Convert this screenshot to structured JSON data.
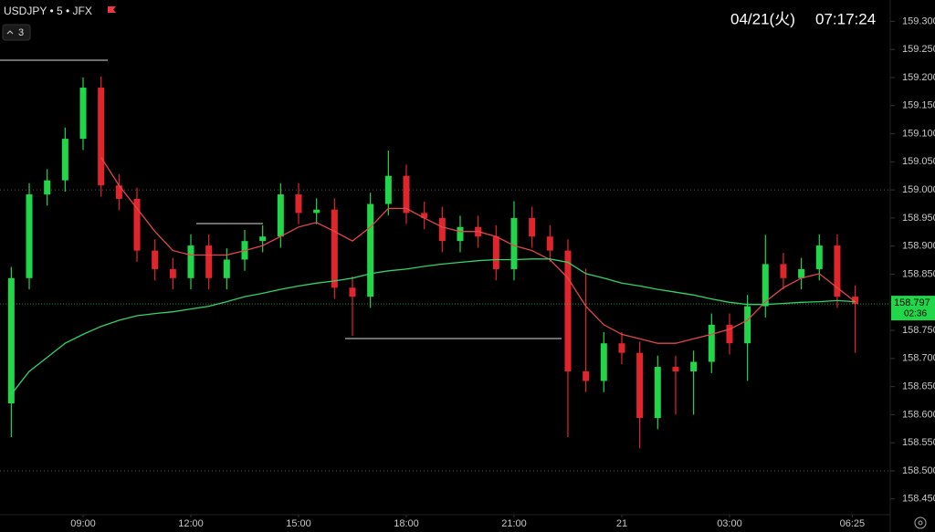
{
  "chart_data": {
    "type": "candlestick",
    "symbol": "USDJPY • 5 • JFX",
    "indicator_count": "3",
    "date": "04/21(火)",
    "time": "07:17:24",
    "last_price": 158.797,
    "countdown": "02:36",
    "up_color": "#22d64a",
    "down_color": "#e0262c",
    "x": [
      7.0,
      7.5,
      8.0,
      8.5,
      9.0,
      9.5,
      10.0,
      10.5,
      11.0,
      11.5,
      12.0,
      12.5,
      13.0,
      13.5,
      14.0,
      14.5,
      15.0,
      15.5,
      16.0,
      16.5,
      17.0,
      17.5,
      18.0,
      18.5,
      19.0,
      19.5,
      20.0,
      20.5,
      21.0,
      21.5,
      22.0,
      22.5,
      23.0,
      23.5,
      24.0,
      24.5,
      25.0,
      25.5,
      26.0,
      26.5,
      27.0,
      27.5,
      28.0,
      28.5,
      29.0,
      29.5,
      30.0,
      30.5
    ],
    "open": [
      158.62,
      158.843,
      158.992,
      159.017,
      159.091,
      159.182,
      159.008,
      158.984,
      158.892,
      158.859,
      158.843,
      158.901,
      158.843,
      158.876,
      158.909,
      158.917,
      158.992,
      158.959,
      158.965,
      158.826,
      158.81,
      158.975,
      159.025,
      158.959,
      158.95,
      158.909,
      158.934,
      158.917,
      158.859,
      158.95,
      158.917,
      158.892,
      158.677,
      158.66,
      158.727,
      158.71,
      158.594,
      158.685,
      158.677,
      158.694,
      158.76,
      158.727,
      158.793,
      158.868,
      158.843,
      158.859,
      158.901,
      158.81
    ],
    "high": [
      158.863,
      159.012,
      159.037,
      159.111,
      159.2,
      159.202,
      159.028,
      159.004,
      158.912,
      158.879,
      158.921,
      158.921,
      158.896,
      158.929,
      158.937,
      159.012,
      159.012,
      158.985,
      158.985,
      158.846,
      158.995,
      159.07,
      159.045,
      158.979,
      158.97,
      158.954,
      158.954,
      158.937,
      158.98,
      158.97,
      158.937,
      158.912,
      158.86,
      158.747,
      158.747,
      158.73,
      158.705,
      158.705,
      158.714,
      158.78,
      158.78,
      158.813,
      158.92,
      158.888,
      158.879,
      158.921,
      158.921,
      158.83
    ],
    "low": [
      158.56,
      158.823,
      158.972,
      158.997,
      159.071,
      158.988,
      158.964,
      158.872,
      158.839,
      158.823,
      158.823,
      158.823,
      158.823,
      158.856,
      158.889,
      158.897,
      158.939,
      158.939,
      158.806,
      158.74,
      158.79,
      158.955,
      158.939,
      158.93,
      158.889,
      158.889,
      158.897,
      158.839,
      158.839,
      158.897,
      158.872,
      158.56,
      158.64,
      158.64,
      158.69,
      158.54,
      158.574,
      158.6,
      158.6,
      158.674,
      158.707,
      158.66,
      158.773,
      158.823,
      158.823,
      158.839,
      158.79,
      158.71
    ],
    "close": [
      158.843,
      158.992,
      159.017,
      159.091,
      159.182,
      159.008,
      158.984,
      158.892,
      158.859,
      158.843,
      158.901,
      158.843,
      158.876,
      158.909,
      158.917,
      158.992,
      158.959,
      158.965,
      158.826,
      158.81,
      158.975,
      159.025,
      158.959,
      158.95,
      158.909,
      158.934,
      158.917,
      158.859,
      158.95,
      158.917,
      158.892,
      158.677,
      158.66,
      158.727,
      158.71,
      158.594,
      158.685,
      158.677,
      158.694,
      158.76,
      158.727,
      158.793,
      158.868,
      158.843,
      158.859,
      158.901,
      158.81,
      158.797
    ],
    "overlays": [
      {
        "color": "#e0484c",
        "values": [
          null,
          null,
          null,
          null,
          null,
          159.058,
          159.008,
          158.967,
          158.926,
          158.892,
          158.884,
          158.884,
          158.884,
          158.892,
          158.901,
          158.917,
          158.934,
          158.942,
          158.926,
          158.909,
          158.934,
          158.967,
          158.967,
          158.95,
          158.934,
          158.926,
          158.926,
          158.917,
          158.901,
          158.892,
          158.876,
          158.843,
          158.793,
          158.76,
          158.743,
          158.735,
          158.727,
          158.727,
          158.735,
          158.743,
          158.752,
          158.768,
          158.801,
          158.826,
          158.843,
          158.851,
          158.826,
          158.801
        ]
      },
      {
        "color": "#2fd36a",
        "values": [
          158.636,
          158.677,
          158.702,
          158.727,
          158.743,
          158.757,
          158.768,
          158.776,
          158.78,
          158.783,
          158.788,
          158.793,
          158.801,
          158.81,
          158.816,
          158.823,
          158.829,
          158.834,
          158.838,
          158.843,
          158.851,
          158.856,
          158.859,
          158.864,
          158.868,
          158.871,
          158.874,
          158.876,
          158.876,
          158.877,
          158.877,
          158.871,
          158.851,
          158.843,
          158.834,
          158.829,
          158.823,
          158.818,
          158.813,
          158.806,
          158.8,
          158.796,
          158.796,
          158.798,
          158.8,
          158.801,
          158.803,
          158.801
        ]
      }
    ],
    "xlim": [
      6.686,
      31.476
    ],
    "xticks": [
      {
        "value": 9,
        "label": "09:00"
      },
      {
        "value": 12,
        "label": "12:00"
      },
      {
        "value": 15,
        "label": "15:00"
      },
      {
        "value": 18,
        "label": "18:00"
      },
      {
        "value": 21,
        "label": "21:00"
      },
      {
        "value": 24,
        "label": "21"
      },
      {
        "value": 27,
        "label": "03:00"
      },
      {
        "value": 30.417,
        "label": "06:25"
      }
    ],
    "ylim": [
      158.422,
      159.338
    ],
    "yticks": [
      {
        "value": 159.3,
        "label": "159.300"
      },
      {
        "value": 159.25,
        "label": "159.250"
      },
      {
        "value": 159.2,
        "label": "159.200"
      },
      {
        "value": 159.15,
        "label": "159.150"
      },
      {
        "value": 159.1,
        "label": "159.100"
      },
      {
        "value": 159.05,
        "label": "159.050"
      },
      {
        "value": 159.0,
        "label": "159.000"
      },
      {
        "value": 158.95,
        "label": "158.950"
      },
      {
        "value": 158.9,
        "label": "158.900"
      },
      {
        "value": 158.85,
        "label": "158.850"
      },
      {
        "value": 158.8,
        "label": "158.800"
      },
      {
        "value": 158.75,
        "label": "158.750"
      },
      {
        "value": 158.7,
        "label": "158.700"
      },
      {
        "value": 158.65,
        "label": "158.650"
      },
      {
        "value": 158.6,
        "label": "158.600"
      },
      {
        "value": 158.55,
        "label": "158.550"
      },
      {
        "value": 158.5,
        "label": "158.500"
      },
      {
        "value": 158.45,
        "label": "158.450"
      }
    ],
    "grid": true
  }
}
